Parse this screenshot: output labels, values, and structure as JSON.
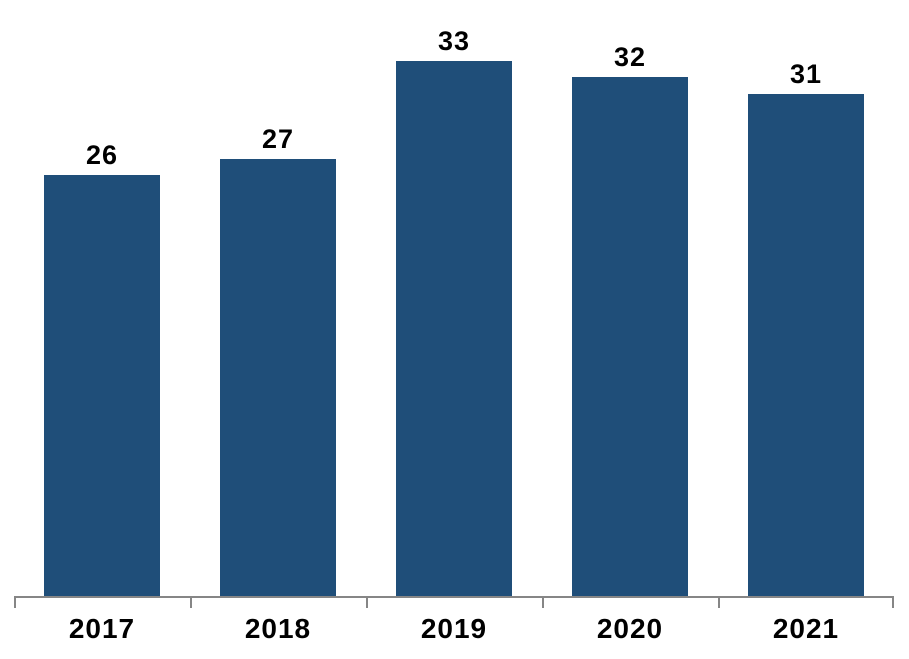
{
  "chart_data": {
    "type": "bar",
    "categories": [
      "2017",
      "2018",
      "2019",
      "2020",
      "2021"
    ],
    "values": [
      26,
      27,
      33,
      32,
      31
    ],
    "data_labels": [
      "26",
      "27",
      "33",
      "32",
      "31"
    ],
    "title": "",
    "xlabel": "",
    "ylabel": "",
    "ylim": [
      0,
      36.75
    ],
    "grid": false,
    "legend": "none",
    "value_labels_shown": true,
    "bar_color": "#1F4E79",
    "value_label_color": "#000000",
    "category_label_color": "#000000",
    "axis_line_color": "#868686",
    "background_color": "#FFFFFF"
  }
}
